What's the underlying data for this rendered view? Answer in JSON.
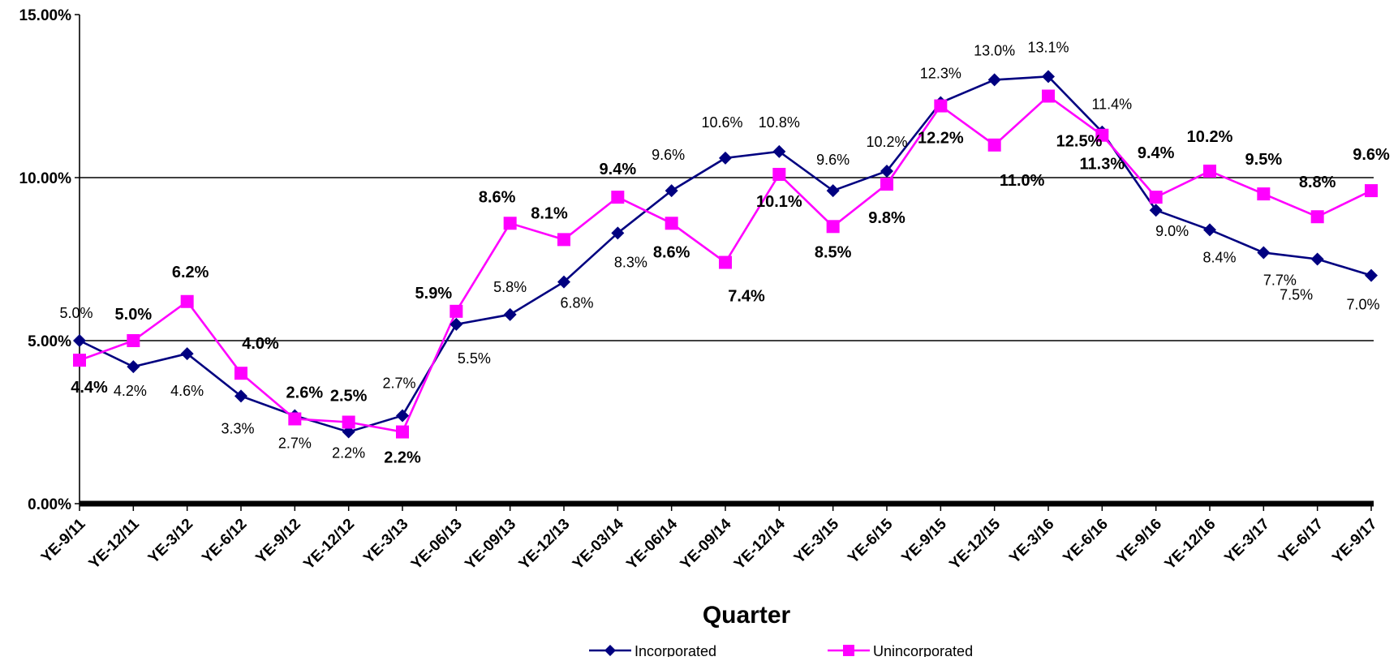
{
  "chart_data": {
    "type": "line",
    "title": "",
    "xlabel": "Quarter",
    "ylabel": "",
    "ylim": [
      0,
      15
    ],
    "y_ticks": [
      "0.00%",
      "5.00%",
      "10.00%",
      "15.00%"
    ],
    "y_tick_values": [
      0,
      5,
      10,
      15
    ],
    "gridlines": [
      5,
      10
    ],
    "legend_position": "bottom",
    "categories": [
      "YE-9/11",
      "YE-12/11",
      "YE-3/12",
      "YE-6/12",
      "YE-9/12",
      "YE-12/12",
      "YE-3/13",
      "YE-06/13",
      "YE-09/13",
      "YE-12/13",
      "YE-03/14",
      "YE-06/14",
      "YE-09/14",
      "YE-12/14",
      "YE-3/15",
      "YE-6/15",
      "YE-9/15",
      "YE-12/15",
      "YE-3/16",
      "YE-6/16",
      "YE-9/16",
      "YE-12/16",
      "YE-3/17",
      "YE-6/17",
      "YE-9/17"
    ],
    "series": [
      {
        "name": "Incorporated",
        "color": "#000080",
        "marker": "diamond",
        "values": [
          5.0,
          4.2,
          4.6,
          3.3,
          2.7,
          2.2,
          2.7,
          5.5,
          5.8,
          6.8,
          8.3,
          9.6,
          10.6,
          10.8,
          9.6,
          10.2,
          12.3,
          13.0,
          13.1,
          11.4,
          9.0,
          8.4,
          7.7,
          7.5,
          7.0
        ],
        "labels": [
          "5.0%",
          "4.2%",
          "4.6%",
          "3.3%",
          "2.7%",
          "2.2%",
          "2.7%",
          "5.5%",
          "5.8%",
          "6.8%",
          "8.3%",
          "9.6%",
          "10.6%",
          "10.8%",
          "9.6%",
          "10.2%",
          "12.3%",
          "13.0%",
          "13.1%",
          "11.4%",
          "9.0%",
          "8.4%",
          "7.7%",
          "7.5%",
          "7.0%"
        ]
      },
      {
        "name": "Unincorporated",
        "color": "#ff00ff",
        "marker": "square",
        "values": [
          4.4,
          5.0,
          6.2,
          4.0,
          2.6,
          2.5,
          2.2,
          5.9,
          8.6,
          8.1,
          9.4,
          8.6,
          7.4,
          10.1,
          8.5,
          9.8,
          12.2,
          11.0,
          12.5,
          11.3,
          9.4,
          10.2,
          9.5,
          8.8,
          9.6
        ],
        "labels": [
          "4.4%",
          "5.0%",
          "6.2%",
          "4.0%",
          "2.6%",
          "2.5%",
          "2.2%",
          "5.9%",
          "8.6%",
          "8.1%",
          "9.4%",
          "8.6%",
          "7.4%",
          "10.1%",
          "8.5%",
          "9.8%",
          "12.2%",
          "11.0%",
          "12.5%",
          "11.3%",
          "9.4%",
          "10.2%",
          "9.5%",
          "8.8%",
          "9.6%"
        ]
      }
    ]
  }
}
